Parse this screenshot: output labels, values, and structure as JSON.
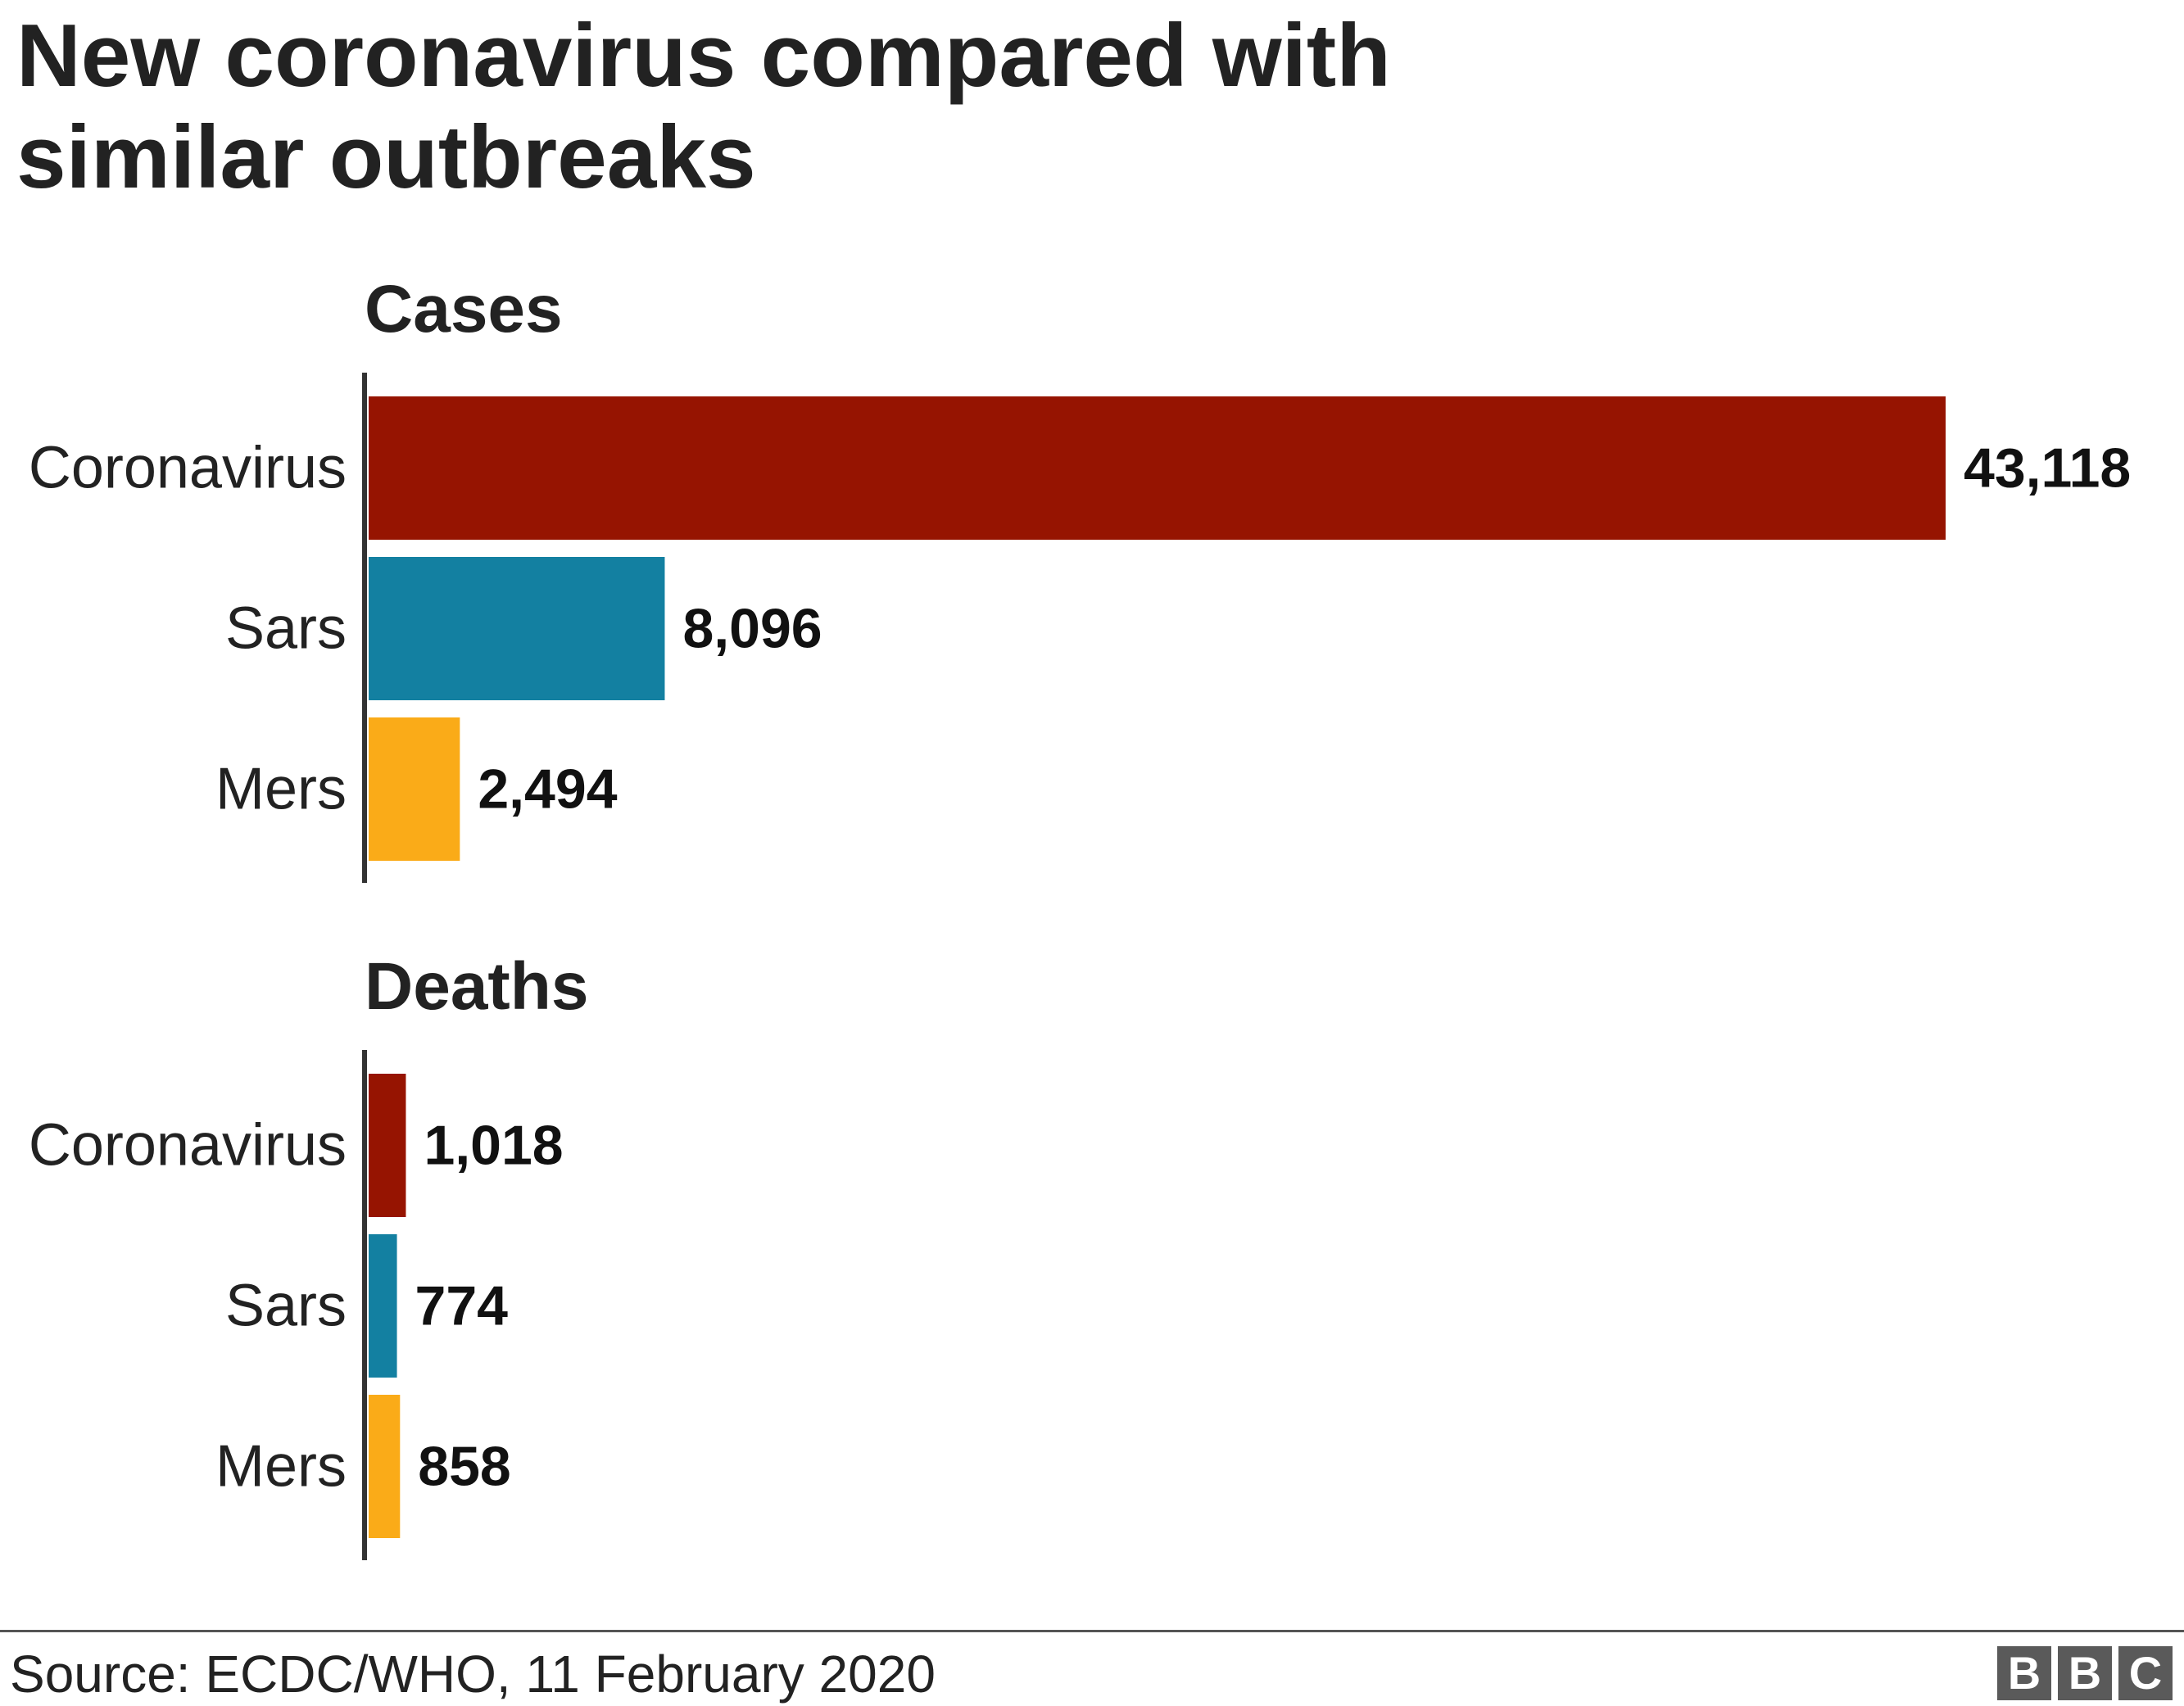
{
  "title_lines": [
    "New coronavirus compared with",
    "similar outbreaks"
  ],
  "source": "Source: ECDC/WHO, 11 February 2020",
  "logo": {
    "letters": [
      "B",
      "B",
      "C"
    ],
    "name": "BBC"
  },
  "colors": {
    "coronavirus": "#961401",
    "sars": "#1380A1",
    "mers": "#FAAB18",
    "axis": "#333333",
    "text": "#222222"
  },
  "chart_data": [
    {
      "type": "bar",
      "orientation": "horizontal",
      "title": "Cases",
      "categories": [
        "Coronavirus",
        "Sars",
        "Mers"
      ],
      "values": [
        43118,
        8096,
        2494
      ],
      "labels": [
        "43,118",
        "8,096",
        "2,494"
      ],
      "xlim": [
        0,
        43118
      ],
      "grid": false
    },
    {
      "type": "bar",
      "orientation": "horizontal",
      "title": "Deaths",
      "categories": [
        "Coronavirus",
        "Sars",
        "Mers"
      ],
      "values": [
        1018,
        774,
        858
      ],
      "labels": [
        "1,018",
        "774",
        "858"
      ],
      "xlim": [
        0,
        43118
      ],
      "grid": false
    }
  ]
}
